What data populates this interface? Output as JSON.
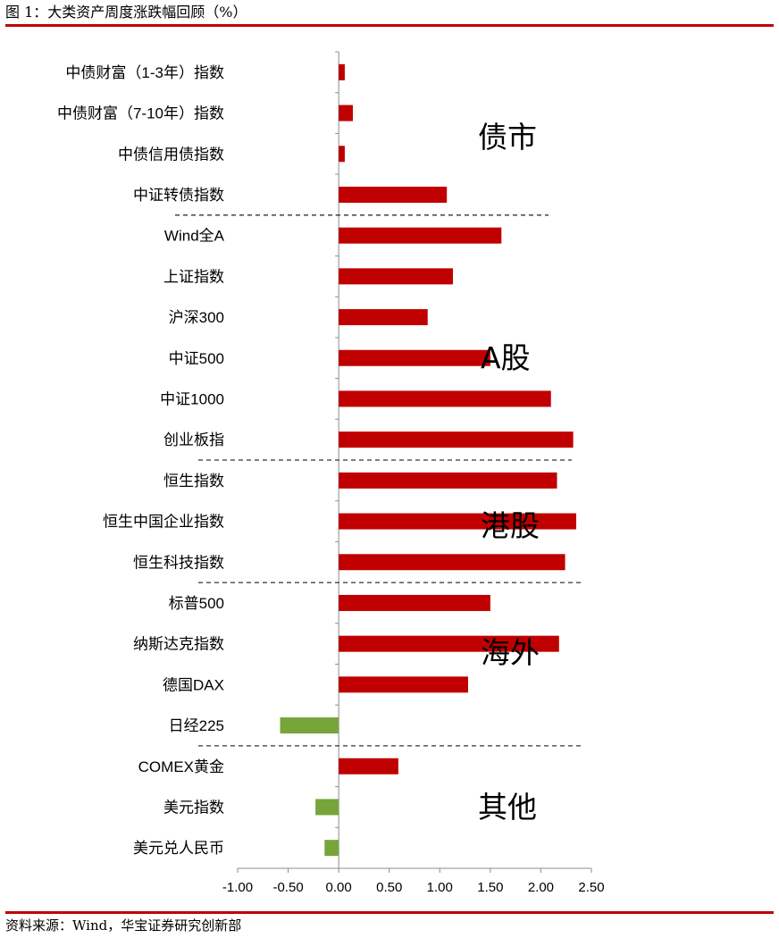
{
  "figure_title": "图 1：大类资产周度涨跌幅回顾（%）",
  "source": "资料来源：Wind，华宝证券研究创新部",
  "colors": {
    "positive": "#c00000",
    "negative": "#77a53a",
    "rule": "#c00000",
    "axis": "#8c8c8c",
    "separator": "#333333"
  },
  "chart_data": {
    "type": "bar",
    "orientation": "horizontal",
    "categories": [
      "中债财富（1-3年）指数",
      "中债财富（7-10年）指数",
      "中债信用债指数",
      "中证转债指数",
      "Wind全A",
      "上证指数",
      "沪深300",
      "中证500",
      "中证1000",
      "创业板指",
      "恒生指数",
      "恒生中国企业指数",
      "恒生科技指数",
      "标普500",
      "纳斯达克指数",
      "德国DAX",
      "日经225",
      "COMEX黄金",
      "美元指数",
      "美元兑人民币"
    ],
    "values": [
      0.06,
      0.14,
      0.06,
      1.07,
      1.61,
      1.13,
      0.88,
      1.5,
      2.1,
      2.32,
      2.16,
      2.35,
      2.24,
      1.5,
      2.18,
      1.28,
      -0.58,
      0.59,
      -0.23,
      -0.14
    ],
    "xlim": [
      -1.0,
      2.5
    ],
    "xticks": [
      "-1.00",
      "-0.50",
      "0.00",
      "0.50",
      "1.00",
      "1.50",
      "2.00",
      "2.50"
    ],
    "groups": [
      {
        "label": "债市",
        "start": 0,
        "end": 3
      },
      {
        "label": "A股",
        "start": 4,
        "end": 9
      },
      {
        "label": "港股",
        "start": 10,
        "end": 12
      },
      {
        "label": "海外",
        "start": 13,
        "end": 16
      },
      {
        "label": "其他",
        "start": 17,
        "end": 19
      }
    ],
    "grid": false,
    "legend": "none"
  }
}
